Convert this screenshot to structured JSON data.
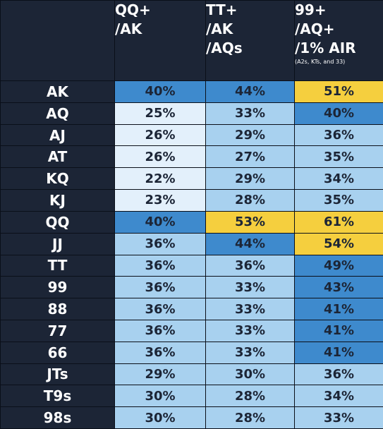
{
  "chart_data": {
    "type": "table",
    "columns": [
      {
        "lines": [
          "QQ+",
          "/AK"
        ],
        "note": ""
      },
      {
        "lines": [
          "TT+",
          "/AK",
          "/AQs"
        ],
        "note": ""
      },
      {
        "lines": [
          "99+",
          "/AQ+",
          "/1% AIR"
        ],
        "note": "(A2s, KTs, and 33)"
      }
    ],
    "rows": [
      {
        "hand": "AK",
        "values": [
          40,
          44,
          51
        ],
        "labels": [
          "40%",
          "44%",
          "51%"
        ]
      },
      {
        "hand": "AQ",
        "values": [
          25,
          33,
          40
        ],
        "labels": [
          "25%",
          "33%",
          "40%"
        ]
      },
      {
        "hand": "AJ",
        "values": [
          26,
          29,
          36
        ],
        "labels": [
          "26%",
          "29%",
          "36%"
        ]
      },
      {
        "hand": "AT",
        "values": [
          26,
          27,
          35
        ],
        "labels": [
          "26%",
          "27%",
          "35%"
        ]
      },
      {
        "hand": "KQ",
        "values": [
          22,
          29,
          34
        ],
        "labels": [
          "22%",
          "29%",
          "34%"
        ]
      },
      {
        "hand": "KJ",
        "values": [
          23,
          28,
          35
        ],
        "labels": [
          "23%",
          "28%",
          "35%"
        ]
      },
      {
        "hand": "QQ",
        "values": [
          40,
          53,
          61
        ],
        "labels": [
          "40%",
          "53%",
          "61%"
        ]
      },
      {
        "hand": "JJ",
        "values": [
          36,
          44,
          54
        ],
        "labels": [
          "36%",
          "44%",
          "54%"
        ]
      },
      {
        "hand": "TT",
        "values": [
          36,
          36,
          49
        ],
        "labels": [
          "36%",
          "36%",
          "49%"
        ]
      },
      {
        "hand": "99",
        "values": [
          36,
          33,
          43
        ],
        "labels": [
          "36%",
          "33%",
          "43%"
        ]
      },
      {
        "hand": "88",
        "values": [
          36,
          33,
          41
        ],
        "labels": [
          "36%",
          "33%",
          "41%"
        ]
      },
      {
        "hand": "77",
        "values": [
          36,
          33,
          41
        ],
        "labels": [
          "36%",
          "33%",
          "41%"
        ]
      },
      {
        "hand": "66",
        "values": [
          36,
          33,
          41
        ],
        "labels": [
          "36%",
          "33%",
          "41%"
        ]
      },
      {
        "hand": "JTs",
        "values": [
          29,
          30,
          36
        ],
        "labels": [
          "29%",
          "30%",
          "36%"
        ]
      },
      {
        "hand": "T9s",
        "values": [
          30,
          28,
          34
        ],
        "labels": [
          "30%",
          "28%",
          "34%"
        ]
      },
      {
        "hand": "98s",
        "values": [
          30,
          28,
          33
        ],
        "labels": [
          "30%",
          "28%",
          "33%"
        ]
      }
    ],
    "color_scale": [
      {
        "min": 0,
        "max": 26,
        "color": "#e3f0fb"
      },
      {
        "min": 27,
        "max": 36,
        "color": "#a8d1ef"
      },
      {
        "min": 37,
        "max": 50,
        "color": "#3e8acd"
      },
      {
        "min": 51,
        "max": 100,
        "color": "#f5cf3e"
      }
    ],
    "colors": {
      "background": "#1c2536",
      "header_text": "#ffffff",
      "value_text": "#1c2536",
      "cell_border": "#0a0f19"
    }
  }
}
